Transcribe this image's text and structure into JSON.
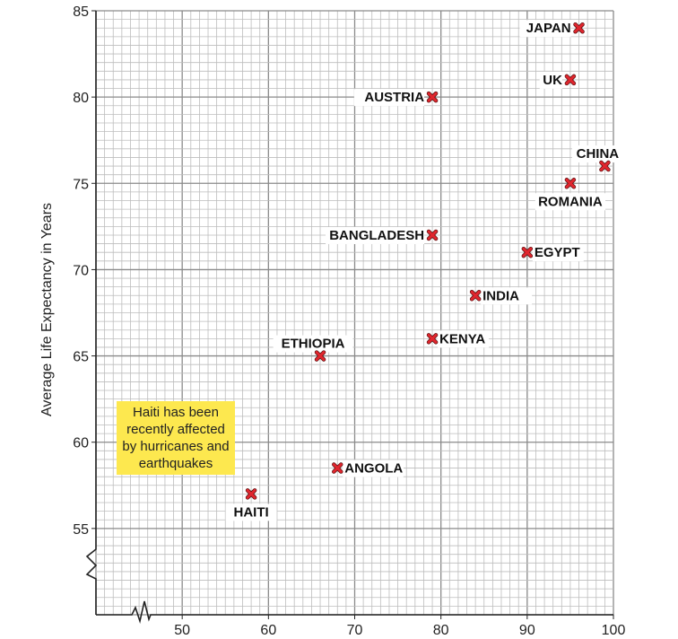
{
  "chart_data": {
    "type": "scatter",
    "title": "",
    "xlabel": "",
    "ylabel": "Average Life Expectancy in Years",
    "xlim": [
      40,
      100
    ],
    "ylim": [
      50,
      85
    ],
    "axis_breaks": {
      "x": true,
      "y": true
    },
    "grid": true,
    "x_ticks": [
      50,
      60,
      70,
      80,
      90,
      100
    ],
    "y_ticks": [
      55,
      60,
      65,
      70,
      75,
      80,
      85
    ],
    "marker_color": "#e0262e",
    "points": [
      {
        "label": "JAPAN",
        "x": 96,
        "y": 84
      },
      {
        "label": "UK",
        "x": 95,
        "y": 81
      },
      {
        "label": "AUSTRIA",
        "x": 79,
        "y": 80
      },
      {
        "label": "CHINA",
        "x": 99,
        "y": 76
      },
      {
        "label": "ROMANIA",
        "x": 95,
        "y": 75
      },
      {
        "label": "BANGLADESH",
        "x": 79,
        "y": 72
      },
      {
        "label": "EGYPT",
        "x": 90,
        "y": 71
      },
      {
        "label": "INDIA",
        "x": 84,
        "y": 68.5
      },
      {
        "label": "KENYA",
        "x": 79,
        "y": 66
      },
      {
        "label": "ETHIOPIA",
        "x": 66,
        "y": 65
      },
      {
        "label": "ANGOLA",
        "x": 68,
        "y": 58.5
      },
      {
        "label": "HAITI",
        "x": 58,
        "y": 57
      }
    ],
    "annotation": {
      "text": "Haiti has been recently affected by hurricanes and earthquakes",
      "color": "#fde84f"
    }
  }
}
